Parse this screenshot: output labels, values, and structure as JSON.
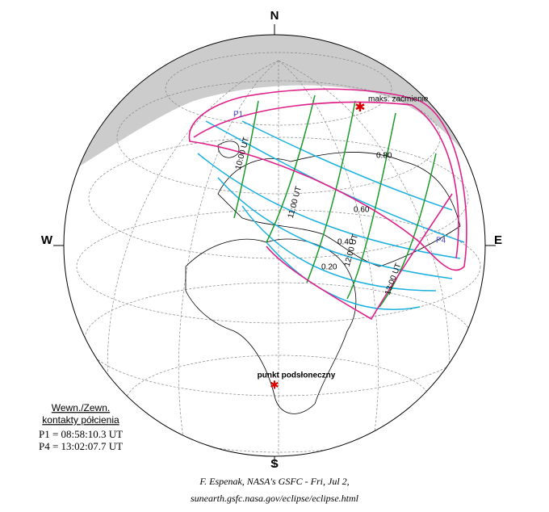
{
  "compass": {
    "north": "N",
    "south": "S",
    "west": "W",
    "east": "E"
  },
  "map": {
    "max_eclipse": "maks. zaćmienie",
    "p1": "P1",
    "p4": "P4",
    "subsolar": "punkt podsłoneczny",
    "magnitudes": [
      "0.20",
      "0.40",
      "0.60",
      "0.80"
    ],
    "times": [
      "10:00 UT",
      "11:00 UT",
      "12:00 UT",
      "13:00 UT"
    ]
  },
  "legend": {
    "title_1": "Wewn./Zewn.",
    "title_2": "kontakty półcienia",
    "p1": "P1 = 08:58:10.3 UT",
    "p4": "P4 = 13:02:07.7 UT"
  },
  "credit": {
    "line_1": "F. Espenak, NASA's GSFC - Fri, Jul 2,",
    "line_2": "sunearth.gsfc.nasa.gov/eclipse/eclipse.html"
  }
}
